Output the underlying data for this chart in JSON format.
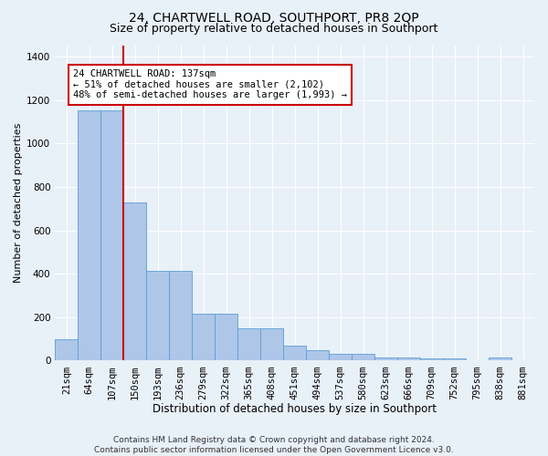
{
  "title": "24, CHARTWELL ROAD, SOUTHPORT, PR8 2QP",
  "subtitle": "Size of property relative to detached houses in Southport",
  "xlabel": "Distribution of detached houses by size in Southport",
  "ylabel": "Number of detached properties",
  "bin_labels": [
    "21sqm",
    "64sqm",
    "107sqm",
    "150sqm",
    "193sqm",
    "236sqm",
    "279sqm",
    "322sqm",
    "365sqm",
    "408sqm",
    "451sqm",
    "494sqm",
    "537sqm",
    "580sqm",
    "623sqm",
    "666sqm",
    "709sqm",
    "752sqm",
    "795sqm",
    "838sqm",
    "881sqm"
  ],
  "bar_heights": [
    100,
    1150,
    1150,
    730,
    415,
    415,
    215,
    215,
    150,
    150,
    70,
    50,
    30,
    30,
    15,
    15,
    10,
    10,
    0,
    15,
    0
  ],
  "bar_color": "#aec6e8",
  "bar_edge_color": "#5a9fd4",
  "red_line_bin_index": 3,
  "annotation_text": "24 CHARTWELL ROAD: 137sqm\n← 51% of detached houses are smaller (2,102)\n48% of semi-detached houses are larger (1,993) →",
  "annotation_box_color": "#ffffff",
  "annotation_box_edge_color": "#cc0000",
  "red_line_color": "#cc0000",
  "ylim": [
    0,
    1450
  ],
  "yticks": [
    0,
    200,
    400,
    600,
    800,
    1000,
    1200,
    1400
  ],
  "footnote": "Contains HM Land Registry data © Crown copyright and database right 2024.\nContains public sector information licensed under the Open Government Licence v3.0.",
  "background_color": "#e8f0f8",
  "plot_bg_color": "#e8f0f8",
  "title_fontsize": 10,
  "subtitle_fontsize": 9,
  "xlabel_fontsize": 8.5,
  "ylabel_fontsize": 8,
  "tick_fontsize": 7.5,
  "footnote_fontsize": 6.5,
  "annotation_fontsize": 7.5
}
